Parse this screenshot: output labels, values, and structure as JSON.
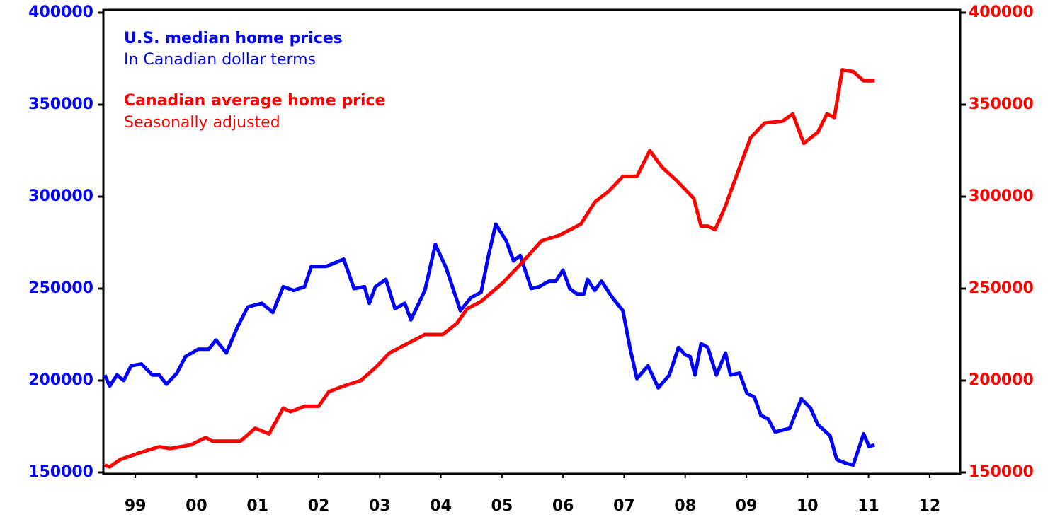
{
  "chart_data": {
    "type": "line",
    "xlim": [
      1999,
      2013
    ],
    "xticks": [
      {
        "value": 1999.5,
        "label": "99"
      },
      {
        "value": 2000.5,
        "label": "00"
      },
      {
        "value": 2001.5,
        "label": "01"
      },
      {
        "value": 2002.5,
        "label": "02"
      },
      {
        "value": 2003.5,
        "label": "03"
      },
      {
        "value": 2004.5,
        "label": "04"
      },
      {
        "value": 2005.5,
        "label": "05"
      },
      {
        "value": 2006.5,
        "label": "06"
      },
      {
        "value": 2007.5,
        "label": "07"
      },
      {
        "value": 2008.5,
        "label": "08"
      },
      {
        "value": 2009.5,
        "label": "09"
      },
      {
        "value": 2010.5,
        "label": "10"
      },
      {
        "value": 2011.5,
        "label": "11"
      },
      {
        "value": 2012.5,
        "label": "12"
      }
    ],
    "ylim": [
      150000,
      400000
    ],
    "yticks": [
      150000,
      200000,
      250000,
      300000,
      350000,
      400000
    ],
    "y2lim": [
      150000,
      400000
    ],
    "y2ticks": [
      150000,
      200000,
      250000,
      300000,
      350000,
      400000
    ],
    "series": [
      {
        "name": "U.S. median home prices",
        "note": "In Canadian dollar terms",
        "color": "#0000ff",
        "axis": "y",
        "x": [
          1999.0,
          1999.08,
          1999.2,
          1999.31,
          1999.43,
          1999.6,
          1999.78,
          1999.89,
          2000.01,
          2000.18,
          2000.32,
          2000.53,
          2000.7,
          2000.82,
          2000.99,
          2001.17,
          2001.34,
          2001.57,
          2001.75,
          2001.92,
          2002.09,
          2002.27,
          2002.38,
          2002.62,
          2002.91,
          2003.08,
          2003.25,
          2003.33,
          2003.43,
          2003.6,
          2003.75,
          2003.91,
          2004.01,
          2004.24,
          2004.41,
          2004.59,
          2004.82,
          2004.99,
          2005.16,
          2005.28,
          2005.4,
          2005.57,
          2005.69,
          2005.8,
          2005.98,
          2006.11,
          2006.27,
          2006.38,
          2006.5,
          2006.61,
          2006.73,
          2006.84,
          2006.9,
          2007.02,
          2007.13,
          2007.31,
          2007.48,
          2007.6,
          2007.71,
          2007.89,
          2008.06,
          2008.24,
          2008.39,
          2008.5,
          2008.58,
          2008.66,
          2008.76,
          2008.87,
          2009.01,
          2009.16,
          2009.24,
          2009.39,
          2009.51,
          2009.63,
          2009.74,
          2009.86,
          2009.97,
          2010.21,
          2010.4,
          2010.55,
          2010.67,
          2010.87,
          2010.98,
          2011.13,
          2011.25,
          2011.42,
          2011.51,
          2011.6
        ],
        "values": [
          203000,
          197000,
          203000,
          200000,
          208000,
          209000,
          203000,
          203000,
          198000,
          204000,
          213000,
          217000,
          217000,
          222000,
          215000,
          229000,
          240000,
          242000,
          237000,
          251000,
          249000,
          251000,
          262000,
          262000,
          266000,
          250000,
          251000,
          242000,
          251000,
          255000,
          239000,
          242000,
          233000,
          249000,
          274000,
          261000,
          238000,
          245000,
          248000,
          268000,
          285000,
          276000,
          265000,
          268000,
          250000,
          251000,
          254000,
          254000,
          260000,
          250000,
          247000,
          247000,
          255000,
          249000,
          254000,
          245000,
          238000,
          217000,
          201000,
          208000,
          196000,
          203000,
          218000,
          214000,
          213000,
          203000,
          220000,
          218000,
          203000,
          215000,
          203000,
          204000,
          193000,
          191000,
          181000,
          179000,
          172000,
          174000,
          190000,
          185000,
          176000,
          170000,
          157000,
          155000,
          154000,
          171000,
          164000,
          165000
        ]
      },
      {
        "name": "Canadian average home price",
        "note": "Seasonally adjusted",
        "color": "#ff0000",
        "axis": "y2",
        "x": [
          1999.0,
          1999.08,
          1999.25,
          1999.6,
          1999.89,
          2000.07,
          2000.41,
          2000.65,
          2000.76,
          2001.22,
          2001.46,
          2001.69,
          2001.92,
          2002.04,
          2002.27,
          2002.5,
          2002.67,
          2002.91,
          2003.19,
          2003.43,
          2003.66,
          2003.95,
          2004.24,
          2004.53,
          2004.76,
          2004.93,
          2005.16,
          2005.51,
          2005.8,
          2006.15,
          2006.44,
          2006.79,
          2007.02,
          2007.25,
          2007.48,
          2007.71,
          2007.92,
          2008.12,
          2008.35,
          2008.64,
          2008.76,
          2008.87,
          2008.99,
          2009.16,
          2009.28,
          2009.57,
          2009.8,
          2010.09,
          2010.26,
          2010.44,
          2010.67,
          2010.82,
          2010.94,
          2011.07,
          2011.25,
          2011.42,
          2011.6
        ],
        "values": [
          154000,
          153000,
          157000,
          161000,
          164000,
          163000,
          165000,
          169000,
          167000,
          167000,
          174000,
          171000,
          185000,
          183000,
          186000,
          186000,
          194000,
          197000,
          200000,
          207000,
          215000,
          220000,
          225000,
          225000,
          231000,
          239000,
          243000,
          253000,
          263000,
          276000,
          279000,
          285000,
          297000,
          303000,
          311000,
          311000,
          325000,
          316000,
          309000,
          299000,
          284000,
          284000,
          282000,
          295000,
          306000,
          332000,
          340000,
          341000,
          345000,
          329000,
          335000,
          345000,
          343000,
          369000,
          368000,
          363000,
          363000
        ]
      }
    ]
  }
}
